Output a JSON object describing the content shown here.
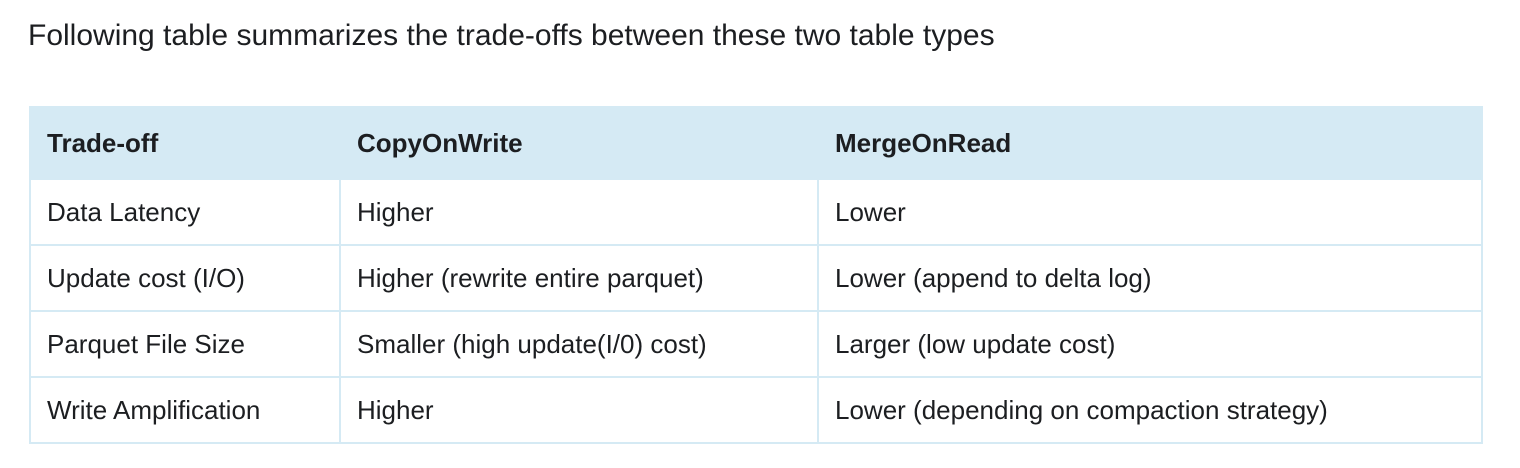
{
  "intro_text": "Following table summarizes the trade-offs between these two table types",
  "table": {
    "headers": [
      "Trade-off",
      "CopyOnWrite",
      "MergeOnRead"
    ],
    "rows": [
      [
        "Data Latency",
        "Higher",
        "Lower"
      ],
      [
        "Update cost (I/O)",
        "Higher (rewrite entire parquet)",
        "Lower (append to delta log)"
      ],
      [
        "Parquet File Size",
        "Smaller (high update(I/0) cost)",
        "Larger (low update cost)"
      ],
      [
        "Write Amplification",
        "Higher",
        "Lower (depending on compaction strategy)"
      ]
    ]
  },
  "colors": {
    "header_bg": "#d5eaf4",
    "border": "#d5eaf4",
    "text": "#1c1e21"
  }
}
